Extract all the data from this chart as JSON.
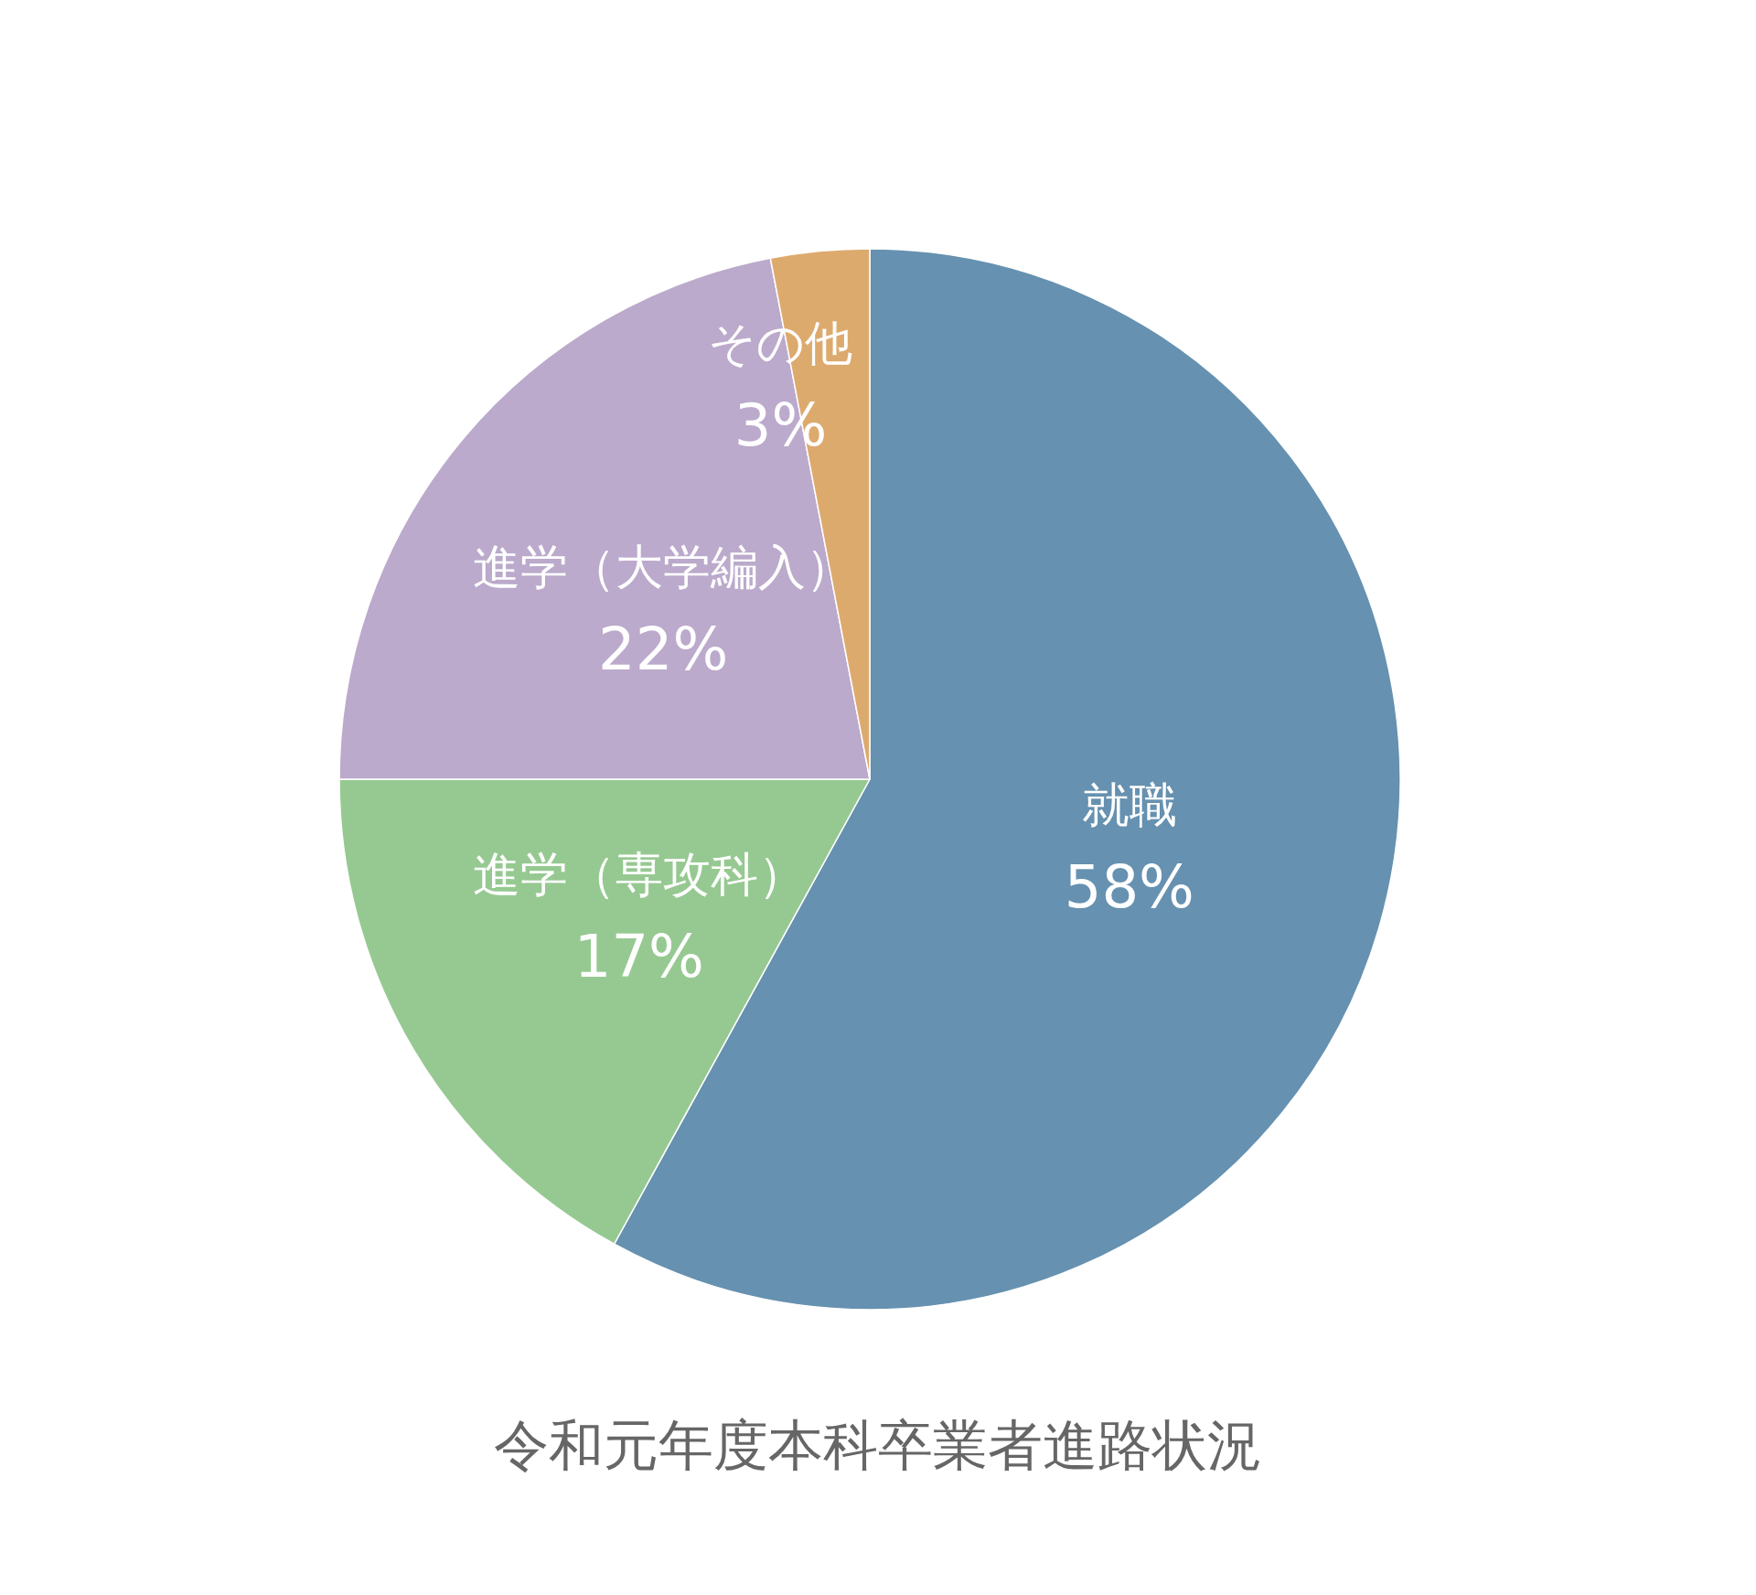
{
  "chart_data": {
    "type": "pie",
    "title": "令和元年度本科卒業者進路状況",
    "categories": [
      "就職",
      "進学（専攻科）",
      "進学（大学編入）",
      "その他"
    ],
    "values": [
      58,
      17,
      22,
      3
    ],
    "value_labels": [
      "58%",
      "17%",
      "22%",
      "3%"
    ],
    "colors": [
      "#6691b0",
      "#96c991",
      "#bbaacc",
      "#ddaa6e"
    ],
    "legend": false
  }
}
